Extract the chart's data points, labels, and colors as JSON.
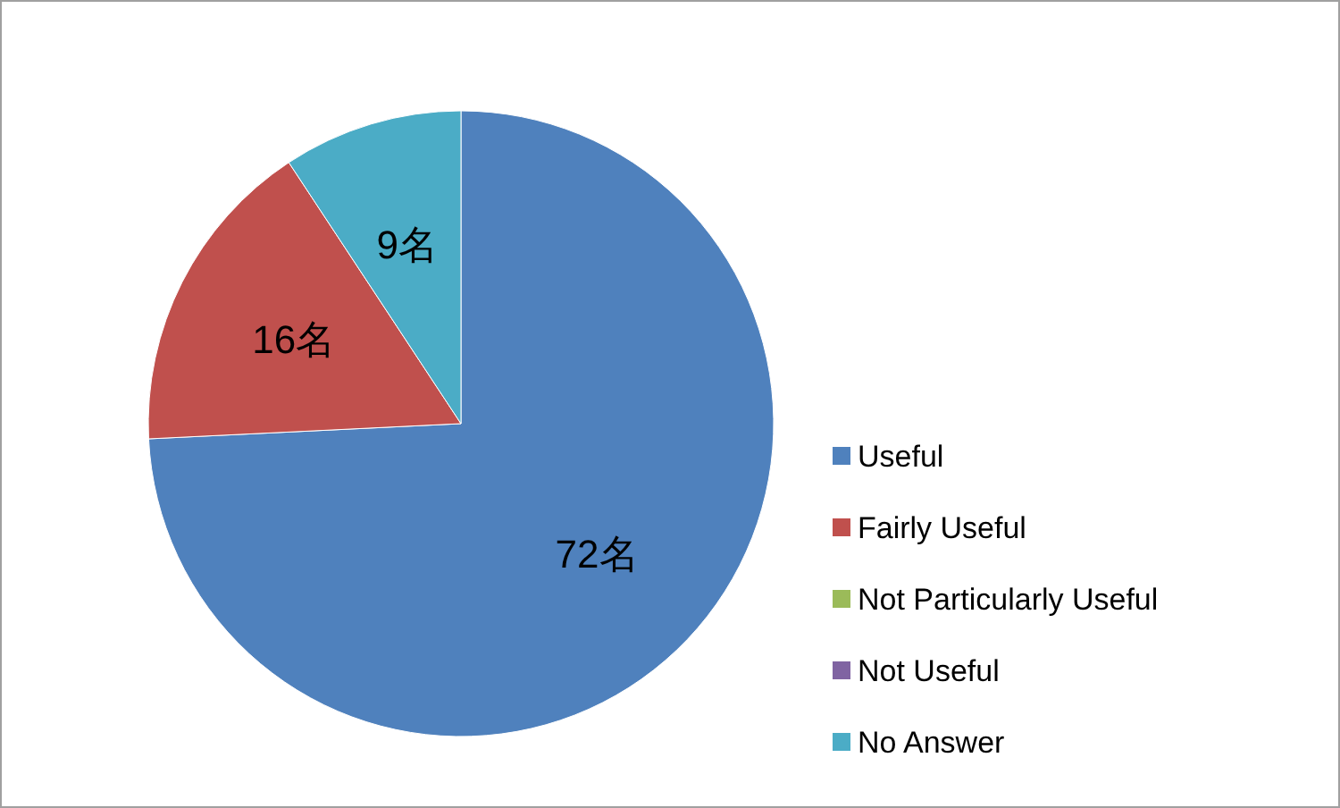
{
  "chart_data": {
    "type": "pie",
    "categories": [
      "Useful",
      "Fairly Useful",
      "Not Particularly Useful",
      "Not Useful",
      "No Answer"
    ],
    "values": [
      72,
      16,
      0,
      0,
      9
    ],
    "colors": [
      "#4f81bd",
      "#c0504d",
      "#9bbb59",
      "#8064a2",
      "#4bacc6"
    ],
    "value_labels": [
      "72名",
      "16名",
      null,
      null,
      "9名"
    ],
    "legend": "right"
  }
}
